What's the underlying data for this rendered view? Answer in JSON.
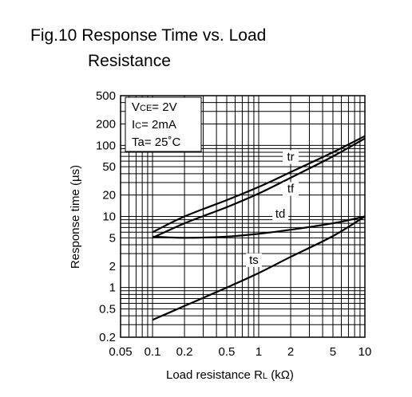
{
  "figure": {
    "title_line1": "Fig.10 Response Time vs. Load",
    "title_line2": "Resistance"
  },
  "conditions": {
    "vce": {
      "main": "V",
      "sub": "CE",
      "rest": "= 2V"
    },
    "ic": {
      "main": "I",
      "sub": "C",
      "rest": "= 2mA"
    },
    "ta": {
      "main": "Ta= 25˚C"
    }
  },
  "chart_data": {
    "type": "line",
    "title": "Fig.10 Response Time vs. Load Resistance",
    "xlabel": {
      "main": "Load resistance R",
      "sub": "L",
      "unit": " (kΩ)"
    },
    "ylabel": "Response time (µs)",
    "xscale": "log",
    "yscale": "log",
    "xlim": [
      0.05,
      10
    ],
    "ylim": [
      0.2,
      500
    ],
    "grid": true,
    "x_ticks": [
      {
        "v": 0.05,
        "label": "0.05"
      },
      {
        "v": 0.1,
        "label": "0.1"
      },
      {
        "v": 0.2,
        "label": "0.2"
      },
      {
        "v": 0.5,
        "label": "0.5"
      },
      {
        "v": 1,
        "label": "1"
      },
      {
        "v": 2,
        "label": "2"
      },
      {
        "v": 5,
        "label": "5"
      },
      {
        "v": 10,
        "label": "10"
      }
    ],
    "y_ticks": [
      {
        "v": 500,
        "label": "500"
      },
      {
        "v": 200,
        "label": "200"
      },
      {
        "v": 100,
        "label": "100"
      },
      {
        "v": 50,
        "label": "50"
      },
      {
        "v": 20,
        "label": "20"
      },
      {
        "v": 10,
        "label": "10"
      },
      {
        "v": 5,
        "label": "5"
      },
      {
        "v": 2,
        "label": "2"
      },
      {
        "v": 1,
        "label": "1"
      },
      {
        "v": 0.5,
        "label": "0.5"
      },
      {
        "v": 0.2,
        "label": "0.2"
      }
    ],
    "series": [
      {
        "name": "tr",
        "x": [
          0.1,
          0.2,
          0.5,
          1,
          2,
          5,
          10
        ],
        "y": [
          6.0,
          10.0,
          17.0,
          26.0,
          42.0,
          80.0,
          135.0
        ]
      },
      {
        "name": "tf",
        "x": [
          0.1,
          0.2,
          0.5,
          1,
          2,
          5,
          10
        ],
        "y": [
          5.0,
          8.0,
          13.5,
          21.0,
          35.0,
          70.0,
          125.0
        ]
      },
      {
        "name": "td",
        "x": [
          0.1,
          0.2,
          0.5,
          1,
          2,
          5,
          10
        ],
        "y": [
          5.2,
          5.0,
          5.2,
          5.7,
          6.5,
          8.0,
          10.0
        ]
      },
      {
        "name": "ts",
        "x": [
          0.1,
          0.2,
          0.5,
          1,
          2,
          5,
          10
        ],
        "y": [
          0.35,
          0.55,
          1.0,
          1.6,
          2.7,
          5.3,
          10.0
        ]
      }
    ]
  }
}
